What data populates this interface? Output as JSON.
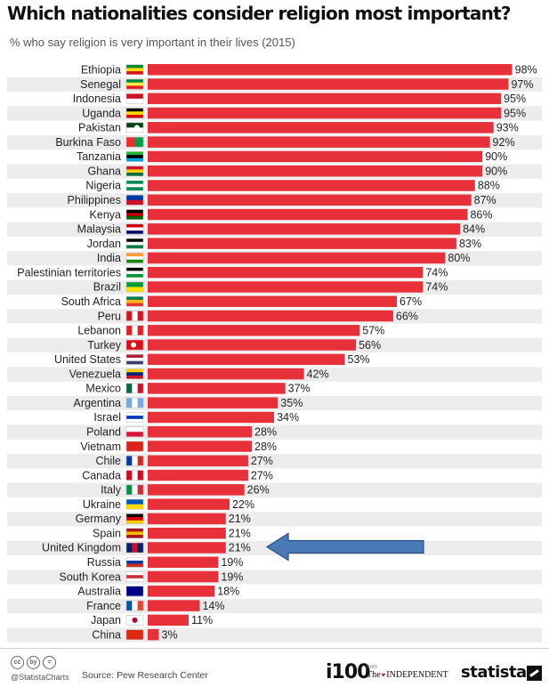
{
  "chart_data": {
    "type": "bar",
    "orientation": "horizontal",
    "title": "Which nationalities consider religion most important?",
    "subtitle": "% who say religion is very important in their lives (2015)",
    "value_suffix": "%",
    "xlim": [
      0,
      100
    ],
    "grid": false,
    "bar_color": "#e8303a",
    "highlight": "United Kingdom",
    "categories": [
      "Ethiopia",
      "Senegal",
      "Indonesia",
      "Uganda",
      "Pakistan",
      "Burkina Faso",
      "Tanzania",
      "Ghana",
      "Nigeria",
      "Philippines",
      "Kenya",
      "Malaysia",
      "Jordan",
      "India",
      "Palestinian territories",
      "Brazil",
      "South Africa",
      "Peru",
      "Lebanon",
      "Turkey",
      "United States",
      "Venezuela",
      "Mexico",
      "Argentina",
      "Israel",
      "Poland",
      "Vietnam",
      "Chile",
      "Canada",
      "Italy",
      "Ukraine",
      "Germany",
      "Spain",
      "United Kingdom",
      "Russia",
      "South Korea",
      "Australia",
      "France",
      "Japan",
      "China"
    ],
    "values": [
      98,
      97,
      95,
      95,
      93,
      92,
      90,
      90,
      88,
      87,
      86,
      84,
      83,
      80,
      74,
      74,
      67,
      66,
      57,
      56,
      53,
      42,
      37,
      35,
      34,
      28,
      28,
      27,
      27,
      26,
      22,
      21,
      21,
      21,
      19,
      19,
      18,
      14,
      11,
      3
    ]
  },
  "footer": {
    "cc_icons": [
      "cc",
      "by",
      "="
    ],
    "handle": "@StatistaCharts",
    "source": "Source: Pew Research Center",
    "partner_logo": "i100",
    "partner_from": "from",
    "partner_name": "INDEPENDENT",
    "partner_prefix": "The",
    "brand": "statista"
  },
  "colors": {
    "arrow_fill": "#4a79b8",
    "arrow_stroke": "#2c4f80",
    "row_stripe": "#ececec"
  }
}
